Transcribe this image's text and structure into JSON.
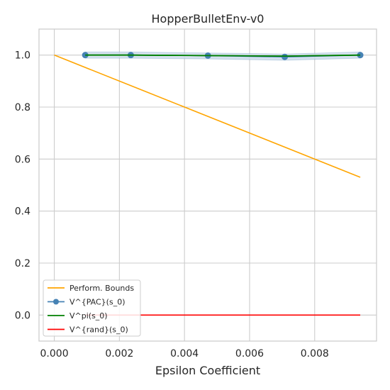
{
  "chart_data": {
    "type": "line",
    "title": "HopperBulletEnv-v0",
    "xlabel": "Epsilon Coefficient",
    "ylabel": "",
    "xlim": [
      -0.00047,
      0.0099
    ],
    "ylim": [
      -0.1,
      1.1
    ],
    "xticks": [
      0.0,
      0.002,
      0.004,
      0.006,
      0.008
    ],
    "xtick_labels": [
      "0.000",
      "0.002",
      "0.004",
      "0.006",
      "0.008"
    ],
    "yticks": [
      0.0,
      0.2,
      0.4,
      0.6,
      0.8,
      1.0
    ],
    "ytick_labels": [
      "0.0",
      "0.2",
      "0.4",
      "0.6",
      "0.8",
      "1.0"
    ],
    "grid": true,
    "legend_position": "lower-left",
    "series": [
      {
        "name": "Perform. Bounds",
        "color": "#ffa500",
        "marker": "none",
        "x": [
          0.0,
          0.0094
        ],
        "y": [
          1.0,
          0.53
        ]
      },
      {
        "name": "V^{PAC}(s_0)",
        "color": "#4682b4",
        "marker": "circle",
        "band_color": "#c9daea",
        "x": [
          0.00095,
          0.00235,
          0.00472,
          0.00708,
          0.0094
        ],
        "y": [
          1.0,
          1.0,
          0.998,
          0.993,
          1.0
        ],
        "band_upper": [
          1.012,
          1.012,
          1.008,
          1.004,
          1.012
        ],
        "band_lower": [
          0.988,
          0.988,
          0.985,
          0.98,
          0.988
        ]
      },
      {
        "name": "V^pi(s_0)",
        "color": "#008000",
        "marker": "none",
        "x": [
          0.00095,
          0.00235,
          0.00472,
          0.00708,
          0.0094
        ],
        "y": [
          1.0,
          1.0,
          0.998,
          0.996,
          1.0
        ]
      },
      {
        "name": "V^{rand}(s_0)",
        "color": "#ff0000",
        "marker": "none",
        "x": [
          0.00095,
          0.0094
        ],
        "y": [
          0.0,
          0.0
        ]
      }
    ]
  }
}
